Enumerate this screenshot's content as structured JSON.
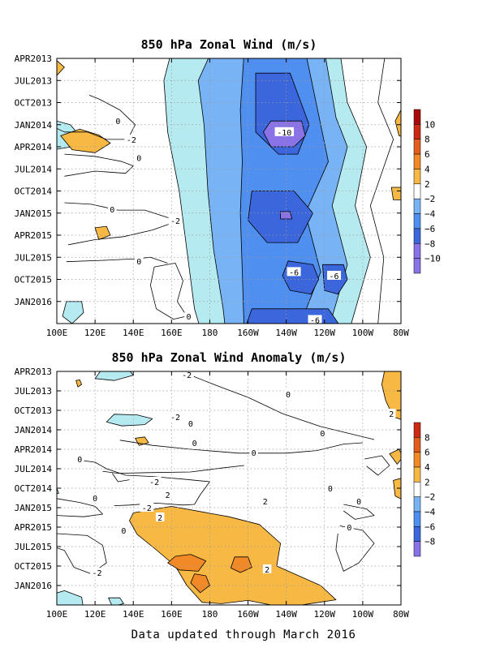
{
  "colors": {
    "bin_colors": [
      "#8a73e6",
      "#3b66dc",
      "#4f8ff0",
      "#78b4f5",
      "#b5eaf0",
      "#ffffff",
      "#f7b844",
      "#f18a26",
      "#e35d1e",
      "#cc2a12",
      "#aa0a0a"
    ]
  },
  "footer": "Data updated through March 2016",
  "chart_data": [
    {
      "type": "heatmap",
      "subtype": "hovmoller-contour",
      "title": "850 hPa Zonal Wind (m/s)",
      "x_ticks": [
        "100E",
        "120E",
        "140E",
        "160E",
        "180",
        "160W",
        "140W",
        "120W",
        "100W",
        "80W"
      ],
      "y_ticks": [
        "APR2013",
        "JUL2013",
        "OCT2013",
        "JAN2014",
        "APR2014",
        "JUL2014",
        "OCT2014",
        "JAN2015",
        "APR2015",
        "JUL2015",
        "OCT2015",
        "JAN2016"
      ],
      "colorbar": {
        "labels": [
          "10",
          "8",
          "6",
          "4",
          "2",
          "−2",
          "−4",
          "−6",
          "−8",
          "−10"
        ],
        "boundaries": [
          12,
          10,
          8,
          6,
          4,
          2,
          -2,
          -4,
          -6,
          -8,
          -10,
          -12
        ]
      },
      "grid": true,
      "contour_labels": [
        {
          "text": "0",
          "lon": 132,
          "month": 8.5
        },
        {
          "text": "-2",
          "lon": 139,
          "month": 11
        },
        {
          "text": "0",
          "lon": 143,
          "month": 13.5
        },
        {
          "text": "0",
          "lon": 129,
          "month": 20.5
        },
        {
          "text": "-2",
          "lon": 162,
          "month": 22
        },
        {
          "text": "0",
          "lon": 143,
          "month": 27.5
        },
        {
          "text": "0",
          "lon": 169,
          "month": 35
        },
        {
          "text": "-10",
          "lon": 219,
          "month": 10
        },
        {
          "text": "-6",
          "lon": 224,
          "month": 29
        },
        {
          "text": "-6",
          "lon": 245,
          "month": 29.5
        },
        {
          "text": "-6",
          "lon": 235,
          "month": 35.5
        }
      ]
    },
    {
      "type": "heatmap",
      "subtype": "hovmoller-contour",
      "title": "850 hPa Zonal Wind Anomaly (m/s)",
      "x_ticks": [
        "100E",
        "120E",
        "140E",
        "160E",
        "180",
        "160W",
        "140W",
        "120W",
        "100W",
        "80W"
      ],
      "y_ticks": [
        "APR2013",
        "JUL2013",
        "OCT2013",
        "JAN2014",
        "APR2014",
        "JUL2014",
        "OCT2014",
        "JAN2015",
        "APR2015",
        "JUL2015",
        "OCT2015",
        "JAN2016"
      ],
      "colorbar": {
        "labels": [
          "8",
          "6",
          "4",
          "2",
          "−2",
          "−4",
          "−6",
          "−8"
        ],
        "boundaries": [
          10,
          8,
          6,
          4,
          2,
          -2,
          -4,
          -6,
          -8,
          -10
        ]
      },
      "grid": true,
      "contour_labels": [
        {
          "text": "-2",
          "lon": 168,
          "month": 0.5
        },
        {
          "text": "0",
          "lon": 221,
          "month": 3.5
        },
        {
          "text": "2",
          "lon": 275,
          "month": 6.5
        },
        {
          "text": "-2",
          "lon": 162,
          "month": 7
        },
        {
          "text": "0",
          "lon": 170,
          "month": 8
        },
        {
          "text": "0",
          "lon": 239,
          "month": 9.5
        },
        {
          "text": "0",
          "lon": 172,
          "month": 11
        },
        {
          "text": "0",
          "lon": 203,
          "month": 12.5
        },
        {
          "text": "0",
          "lon": 112,
          "month": 13.5
        },
        {
          "text": "-2",
          "lon": 151,
          "month": 17
        },
        {
          "text": "0",
          "lon": 243,
          "month": 18
        },
        {
          "text": "0",
          "lon": 120,
          "month": 19.5
        },
        {
          "text": "2",
          "lon": 158,
          "month": 19
        },
        {
          "text": "2",
          "lon": 209,
          "month": 20
        },
        {
          "text": "0",
          "lon": 258,
          "month": 20
        },
        {
          "text": "-2",
          "lon": 147,
          "month": 21
        },
        {
          "text": "2",
          "lon": 154,
          "month": 22.5
        },
        {
          "text": "0",
          "lon": 135,
          "month": 24.5
        },
        {
          "text": "0",
          "lon": 253,
          "month": 24
        },
        {
          "text": "-2",
          "lon": 121,
          "month": 31
        },
        {
          "text": "2",
          "lon": 210,
          "month": 30.5
        }
      ]
    }
  ]
}
